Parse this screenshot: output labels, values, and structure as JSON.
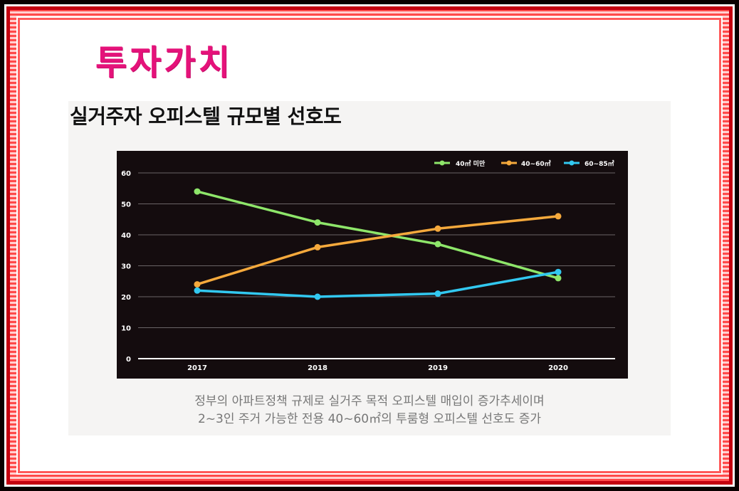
{
  "page": {
    "main_title": "투자가치",
    "caption_line1": "정부의 아파트정책 규제로 실거주 목적 오피스텔 매입이 증가추세이며",
    "caption_line2": "2~3인 주거 가능한 전용 40~60㎡의 투룸형 오피스텔 선호도 증가"
  },
  "colors": {
    "title_pink": "#e5127a",
    "frame_red": "#c40010",
    "chart_bg": "#140c0e"
  },
  "chart_data": {
    "type": "line",
    "title": "실거주자 오피스텔 규모별 선호도",
    "categories": [
      "2017",
      "2018",
      "2019",
      "2020"
    ],
    "yticks": [
      "0",
      "10",
      "20",
      "30",
      "40",
      "50",
      "60"
    ],
    "ylim": [
      0,
      60
    ],
    "grid": true,
    "legend_position": "top-right",
    "series": [
      {
        "name": "40㎡ 미만",
        "color": "#8ee66a",
        "values": [
          54,
          44,
          37,
          26
        ]
      },
      {
        "name": "40~60㎡",
        "color": "#f5a93c",
        "values": [
          24,
          36,
          42,
          46
        ]
      },
      {
        "name": "60~85㎡",
        "color": "#32c8f0",
        "values": [
          22,
          20,
          21,
          28
        ]
      }
    ]
  }
}
